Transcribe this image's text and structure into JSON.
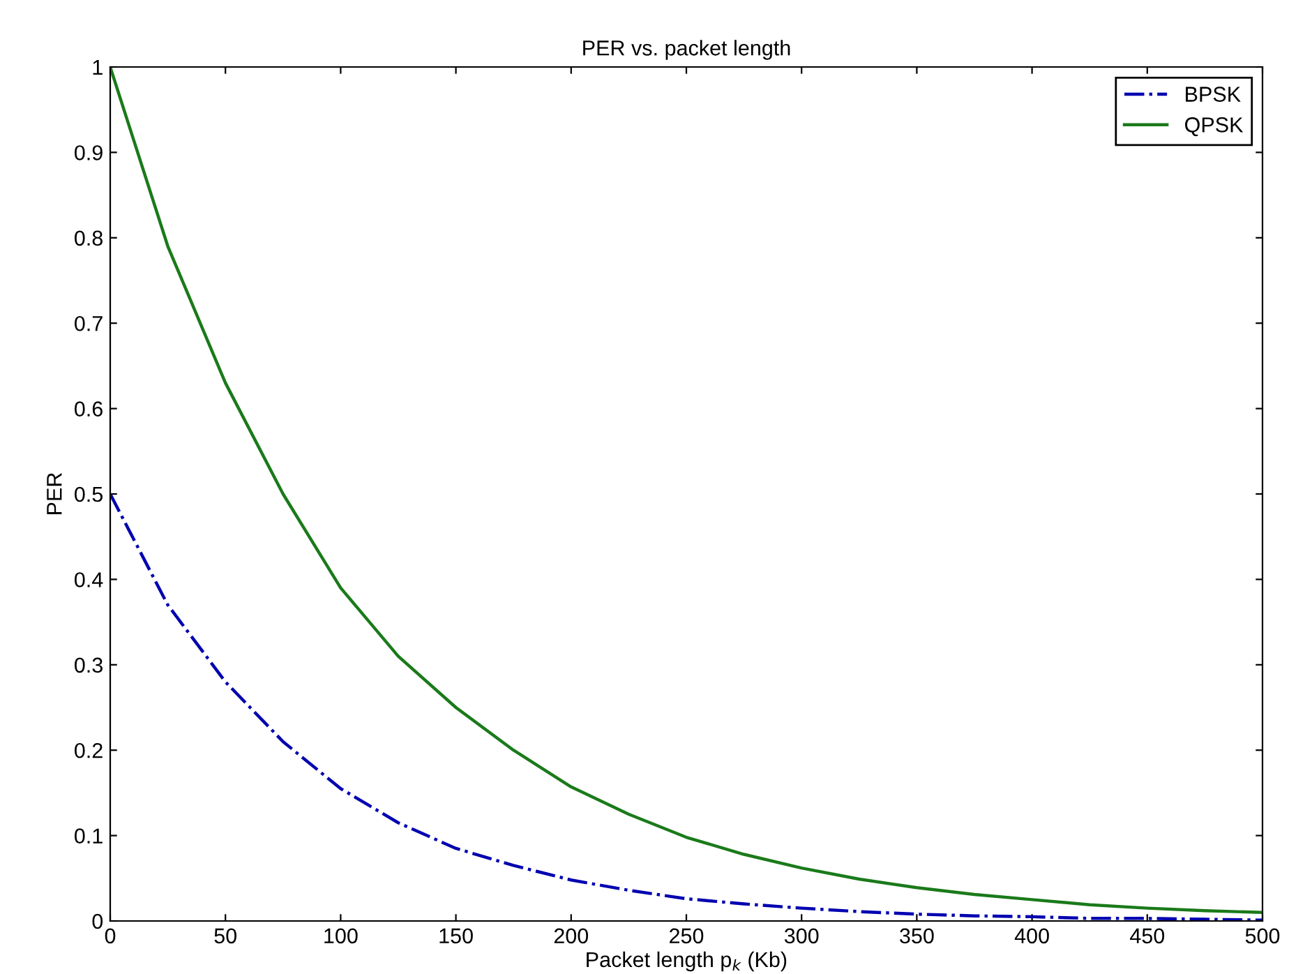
{
  "chart_data": {
    "type": "line",
    "title": "PER vs. packet length",
    "xlabel": "Packet length p$_{k}$ (Kb)",
    "ylabel": "PER",
    "x": [
      0,
      25,
      50,
      75,
      100,
      125,
      150,
      175,
      200,
      225,
      250,
      275,
      300,
      325,
      350,
      375,
      400,
      425,
      450,
      475,
      500
    ],
    "series": [
      {
        "name": "BPSK",
        "color": "#0000b0",
        "line_style": "dashdot",
        "values": [
          0.5,
          0.37,
          0.28,
          0.21,
          0.155,
          0.115,
          0.085,
          0.065,
          0.048,
          0.036,
          0.026,
          0.02,
          0.015,
          0.011,
          0.008,
          0.006,
          0.005,
          0.003,
          0.003,
          0.002,
          0.001
        ]
      },
      {
        "name": "QPSK",
        "color": "#1a7a1a",
        "line_style": "solid",
        "values": [
          1,
          0.79,
          0.63,
          0.5,
          0.39,
          0.31,
          0.25,
          0.2,
          0.157,
          0.125,
          0.098,
          0.078,
          0.062,
          0.049,
          0.039,
          0.031,
          0.025,
          0.019,
          0.015,
          0.012,
          0.01
        ]
      }
    ],
    "xlim": [
      0,
      500
    ],
    "xticks": [
      0,
      50,
      100,
      150,
      200,
      250,
      300,
      350,
      400,
      450,
      500
    ],
    "ylim": [
      0,
      1
    ],
    "yticks": [
      0,
      0.1,
      0.2,
      0.3,
      0.4,
      0.5,
      0.6,
      0.7,
      0.8,
      0.9,
      1
    ],
    "grid": false,
    "legend": "top right",
    "marker": "none"
  }
}
